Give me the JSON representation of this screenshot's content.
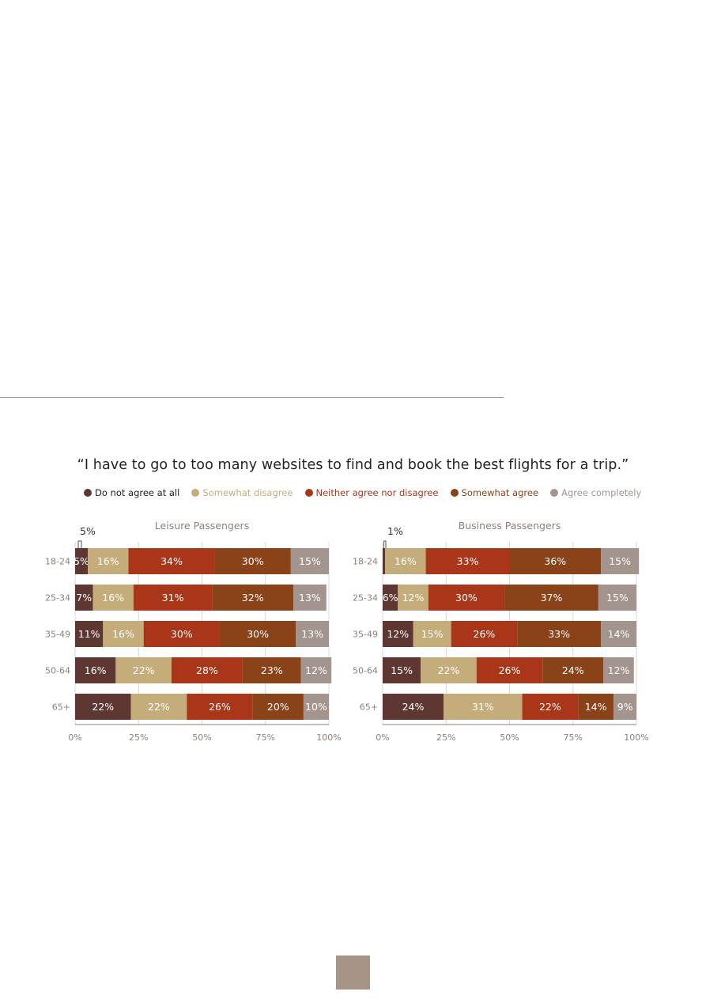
{
  "chart_title": "“I have to go to too many websites to find and book the best flights for a trip.”",
  "legend": [
    {
      "label": "Do not agree at all",
      "color": "#5e3733",
      "text_color": "#222222"
    },
    {
      "label": "Somewhat disagree",
      "color": "#c5ac7b",
      "text_color": "#c5ac7b"
    },
    {
      "label": "Neither agree nor disagree",
      "color": "#aa3619",
      "text_color": "#aa3619"
    },
    {
      "label": "Somewhat agree",
      "color": "#8a4219",
      "text_color": "#8a4219"
    },
    {
      "label": "Agree completely",
      "color": "#a3948d",
      "text_color": "#a3948d"
    }
  ],
  "chart_data": [
    {
      "type": "bar",
      "orientation": "horizontal-stacked-100",
      "title": "Leisure Passengers",
      "categories": [
        "18-24",
        "25-34",
        "35-49",
        "50-64",
        "65+"
      ],
      "series": [
        {
          "name": "Do not agree at all",
          "values": [
            5,
            7,
            11,
            16,
            22
          ]
        },
        {
          "name": "Somewhat disagree",
          "values": [
            16,
            16,
            16,
            22,
            22
          ]
        },
        {
          "name": "Neither agree nor disagree",
          "values": [
            34,
            31,
            30,
            28,
            26
          ]
        },
        {
          "name": "Somewhat agree",
          "values": [
            30,
            32,
            30,
            23,
            20
          ]
        },
        {
          "name": "Agree completely",
          "values": [
            15,
            13,
            13,
            12,
            10
          ]
        }
      ],
      "callout": "5%",
      "xlim": [
        0,
        100
      ],
      "xticks": [
        "0%",
        "25%",
        "50%",
        "75%",
        "100%"
      ]
    },
    {
      "type": "bar",
      "orientation": "horizontal-stacked-100",
      "title": "Business Passengers",
      "categories": [
        "18-24",
        "25-34",
        "35-49",
        "50-64",
        "65+"
      ],
      "series": [
        {
          "name": "Do not agree at all",
          "values": [
            1,
            6,
            12,
            15,
            24
          ]
        },
        {
          "name": "Somewhat disagree",
          "values": [
            16,
            12,
            15,
            22,
            31
          ]
        },
        {
          "name": "Neither agree nor disagree",
          "values": [
            33,
            30,
            26,
            26,
            22
          ]
        },
        {
          "name": "Somewhat agree",
          "values": [
            36,
            37,
            33,
            24,
            14
          ]
        },
        {
          "name": "Agree completely",
          "values": [
            15,
            15,
            14,
            12,
            9
          ]
        }
      ],
      "callout": "1%",
      "xlim": [
        0,
        100
      ],
      "xticks": [
        "0%",
        "25%",
        "50%",
        "75%",
        "100%"
      ]
    }
  ]
}
